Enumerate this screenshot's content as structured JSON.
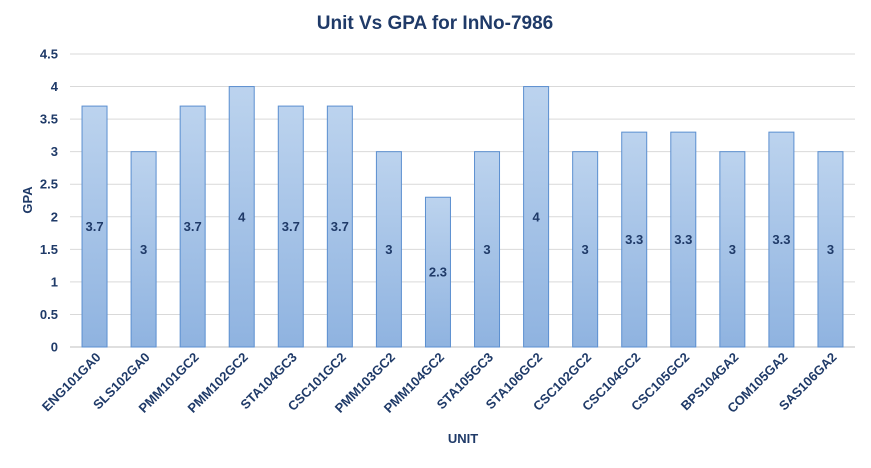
{
  "chart_data": {
    "type": "bar",
    "title": "Unit Vs GPA for InNo-7986",
    "xlabel": "UNIT",
    "ylabel": "GPA",
    "ylim": [
      0,
      4.5
    ],
    "yticks": [
      "0",
      "0.5",
      "1",
      "1.5",
      "2",
      "2.5",
      "3",
      "3.5",
      "4",
      "4.5"
    ],
    "grid": true,
    "categories": [
      "ENG101GA0",
      "SLS102GA0",
      "PMM101GC2",
      "PMM102GC2",
      "STA104GC3",
      "CSC101GC2",
      "PMM103GC2",
      "PMM104GC2",
      "STA105GC3",
      "STA106GC2",
      "CSC102GC2",
      "CSC104GC2",
      "CSC105GC2",
      "BPS104GA2",
      "COM105GA2",
      "SAS106GA2"
    ],
    "values": [
      3.7,
      3,
      3.7,
      4,
      3.7,
      3.7,
      3,
      2.3,
      3,
      4,
      3,
      3.3,
      3.3,
      3,
      3.3,
      3
    ],
    "value_labels": [
      "3.7",
      "3",
      "3.7",
      "4",
      "3.7",
      "3.7",
      "3",
      "2.3",
      "3",
      "4",
      "3",
      "3.3",
      "3.3",
      "3",
      "3.3",
      "3"
    ],
    "colors": {
      "bar_top": "#bcd3ee",
      "bar_bottom": "#8fb3e0",
      "bar_stroke": "#5b8fd0"
    }
  }
}
